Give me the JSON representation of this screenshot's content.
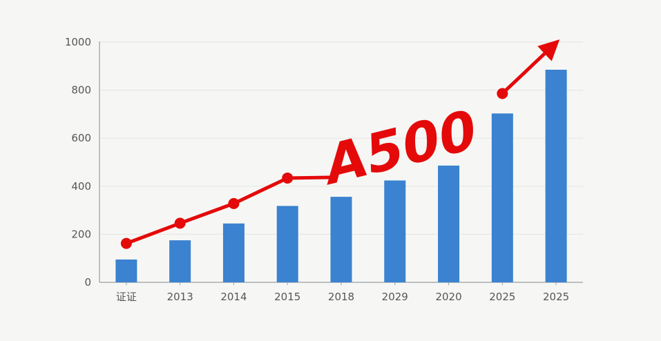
{
  "chart_data": {
    "type": "bar",
    "categories": [
      "证证",
      "2013",
      "2014",
      "2015",
      "2018",
      "2029",
      "2020",
      "2025",
      "2025"
    ],
    "values": [
      95,
      175,
      245,
      318,
      356,
      424,
      486,
      703,
      885
    ],
    "ylim": [
      0,
      1000
    ],
    "yticks": [
      0,
      200,
      400,
      600,
      800,
      1000
    ],
    "grid": true,
    "bar_color": "#3b82d0",
    "line_color": "#e40a0a",
    "trend_line": {
      "points": [
        {
          "x": "证证",
          "y": 162
        },
        {
          "x": "2013",
          "y": 246
        },
        {
          "x": "2014",
          "y": 328
        },
        {
          "x": "2015",
          "y": 434
        },
        {
          "x": "2025",
          "y": 786
        }
      ],
      "marker": "circle",
      "arrow_end": true
    },
    "annotation": "A500"
  }
}
